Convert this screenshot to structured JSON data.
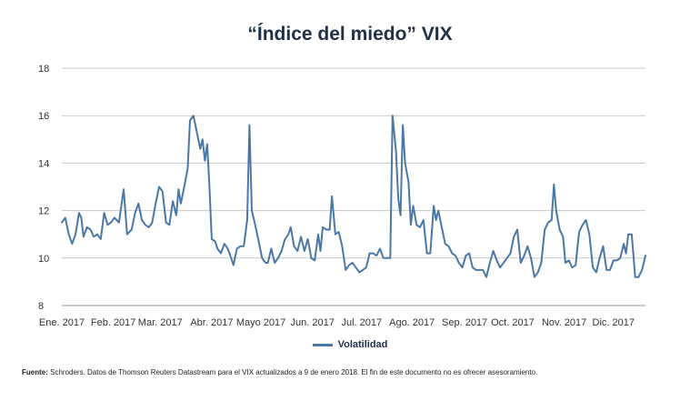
{
  "chart_data": {
    "type": "line",
    "title": "“Índice del miedo” VIX",
    "xlabel": "",
    "ylabel": "",
    "ylim": [
      8,
      18
    ],
    "yticks": [
      8,
      10,
      12,
      14,
      16,
      18
    ],
    "xlim": [
      0,
      51
    ],
    "x_tick_labels": [
      {
        "pos": 0,
        "label": "Ene. 2017"
      },
      {
        "pos": 4.5,
        "label": "Feb. 2017"
      },
      {
        "pos": 8.6,
        "label": "Mar. 2017"
      },
      {
        "pos": 13.1,
        "label": "Abr. 2017"
      },
      {
        "pos": 17.4,
        "label": "Mayo 2017"
      },
      {
        "pos": 21.9,
        "label": "Jun. 2017"
      },
      {
        "pos": 26.2,
        "label": "Jul. 2017"
      },
      {
        "pos": 30.6,
        "label": "Ago. 2017"
      },
      {
        "pos": 35.2,
        "label": "Sep. 2017"
      },
      {
        "pos": 39.4,
        "label": "Oct. 2017"
      },
      {
        "pos": 43.9,
        "label": "Nov. 2017"
      },
      {
        "pos": 48.2,
        "label": "Dic. 2017"
      }
    ],
    "series": [
      {
        "name": "Volatilidad",
        "color": "#4a78a6",
        "points": [
          [
            0,
            11.5
          ],
          [
            0.3,
            11.7
          ],
          [
            0.6,
            11.0
          ],
          [
            0.9,
            10.6
          ],
          [
            1.2,
            11.0
          ],
          [
            1.5,
            11.9
          ],
          [
            1.7,
            11.7
          ],
          [
            1.9,
            10.9
          ],
          [
            2.2,
            11.3
          ],
          [
            2.5,
            11.2
          ],
          [
            2.8,
            10.9
          ],
          [
            3.1,
            11.0
          ],
          [
            3.4,
            10.8
          ],
          [
            3.7,
            11.9
          ],
          [
            4.0,
            11.4
          ],
          [
            4.3,
            11.5
          ],
          [
            4.6,
            11.7
          ],
          [
            5.0,
            11.5
          ],
          [
            5.4,
            12.9
          ],
          [
            5.7,
            11.0
          ],
          [
            6.1,
            11.2
          ],
          [
            6.4,
            11.9
          ],
          [
            6.7,
            12.3
          ],
          [
            7.0,
            11.6
          ],
          [
            7.3,
            11.4
          ],
          [
            7.6,
            11.3
          ],
          [
            7.9,
            11.5
          ],
          [
            8.2,
            12.3
          ],
          [
            8.5,
            13.0
          ],
          [
            8.8,
            12.8
          ],
          [
            9.1,
            11.5
          ],
          [
            9.4,
            11.4
          ],
          [
            9.7,
            12.4
          ],
          [
            10.0,
            11.8
          ],
          [
            10.2,
            12.9
          ],
          [
            10.4,
            12.3
          ],
          [
            10.7,
            13.0
          ],
          [
            11.0,
            13.8
          ],
          [
            11.2,
            15.8
          ],
          [
            11.5,
            16.0
          ],
          [
            11.8,
            15.3
          ],
          [
            12.1,
            14.6
          ],
          [
            12.3,
            15.0
          ],
          [
            12.5,
            14.1
          ],
          [
            12.7,
            14.8
          ],
          [
            12.9,
            13.0
          ],
          [
            13.1,
            10.8
          ],
          [
            13.4,
            10.7
          ],
          [
            13.6,
            10.4
          ],
          [
            13.9,
            10.2
          ],
          [
            14.2,
            10.6
          ],
          [
            14.5,
            10.4
          ],
          [
            14.8,
            10.0
          ],
          [
            15.0,
            9.7
          ],
          [
            15.3,
            10.4
          ],
          [
            15.6,
            10.5
          ],
          [
            15.9,
            10.5
          ],
          [
            16.2,
            11.6
          ],
          [
            16.4,
            15.6
          ],
          [
            16.6,
            12.0
          ],
          [
            16.9,
            11.4
          ],
          [
            17.2,
            10.7
          ],
          [
            17.5,
            10.0
          ],
          [
            17.8,
            9.8
          ],
          [
            18.0,
            9.8
          ],
          [
            18.3,
            10.4
          ],
          [
            18.6,
            9.8
          ],
          [
            18.9,
            10.0
          ],
          [
            19.2,
            10.3
          ],
          [
            19.5,
            10.8
          ],
          [
            19.8,
            11.0
          ],
          [
            20.0,
            11.3
          ],
          [
            20.3,
            10.5
          ],
          [
            20.6,
            10.3
          ],
          [
            20.9,
            10.9
          ],
          [
            21.2,
            10.3
          ],
          [
            21.5,
            10.8
          ],
          [
            21.8,
            10.0
          ],
          [
            22.1,
            9.9
          ],
          [
            22.4,
            11.0
          ],
          [
            22.6,
            10.3
          ],
          [
            22.8,
            11.3
          ],
          [
            23.1,
            11.2
          ],
          [
            23.4,
            11.2
          ],
          [
            23.6,
            12.6
          ],
          [
            23.9,
            11.0
          ],
          [
            24.2,
            11.1
          ],
          [
            24.5,
            10.5
          ],
          [
            24.8,
            9.5
          ],
          [
            25.1,
            9.7
          ],
          [
            25.4,
            9.8
          ],
          [
            25.7,
            9.6
          ],
          [
            26.0,
            9.4
          ],
          [
            26.3,
            9.5
          ],
          [
            26.6,
            9.6
          ],
          [
            26.9,
            10.2
          ],
          [
            27.2,
            10.2
          ],
          [
            27.5,
            10.1
          ],
          [
            27.8,
            10.4
          ],
          [
            28.1,
            10.0
          ],
          [
            28.4,
            10.0
          ],
          [
            28.7,
            10.0
          ],
          [
            28.9,
            16.0
          ],
          [
            29.2,
            14.5
          ],
          [
            29.4,
            12.5
          ],
          [
            29.6,
            11.8
          ],
          [
            29.8,
            15.6
          ],
          [
            30.0,
            14.0
          ],
          [
            30.3,
            13.2
          ],
          [
            30.5,
            11.4
          ],
          [
            30.7,
            12.2
          ],
          [
            31.0,
            11.4
          ],
          [
            31.3,
            11.3
          ],
          [
            31.6,
            11.6
          ],
          [
            31.9,
            10.2
          ],
          [
            32.2,
            10.2
          ],
          [
            32.5,
            12.2
          ],
          [
            32.7,
            11.6
          ],
          [
            32.9,
            12.0
          ],
          [
            33.2,
            11.3
          ],
          [
            33.5,
            10.6
          ],
          [
            33.8,
            10.5
          ],
          [
            34.1,
            10.2
          ],
          [
            34.4,
            10.1
          ],
          [
            34.7,
            9.8
          ],
          [
            35.0,
            9.6
          ],
          [
            35.3,
            10.1
          ],
          [
            35.6,
            10.2
          ],
          [
            35.9,
            9.6
          ],
          [
            36.2,
            9.5
          ],
          [
            36.5,
            9.5
          ],
          [
            36.8,
            9.5
          ],
          [
            37.1,
            9.2
          ],
          [
            37.4,
            9.8
          ],
          [
            37.7,
            10.3
          ],
          [
            38.0,
            9.9
          ],
          [
            38.3,
            9.6
          ],
          [
            38.6,
            9.8
          ],
          [
            38.9,
            10.0
          ],
          [
            39.2,
            10.2
          ],
          [
            39.5,
            10.9
          ],
          [
            39.8,
            11.2
          ],
          [
            40.1,
            9.8
          ],
          [
            40.4,
            10.1
          ],
          [
            40.7,
            10.5
          ],
          [
            41.0,
            10.0
          ],
          [
            41.3,
            9.2
          ],
          [
            41.6,
            9.4
          ],
          [
            41.9,
            9.8
          ],
          [
            42.2,
            11.2
          ],
          [
            42.5,
            11.5
          ],
          [
            42.8,
            11.6
          ],
          [
            43.0,
            13.1
          ],
          [
            43.2,
            12.0
          ],
          [
            43.5,
            11.2
          ],
          [
            43.8,
            10.9
          ],
          [
            44.0,
            9.8
          ],
          [
            44.3,
            9.9
          ],
          [
            44.6,
            9.6
          ],
          [
            44.9,
            9.7
          ],
          [
            45.2,
            11.1
          ],
          [
            45.5,
            11.4
          ],
          [
            45.8,
            11.6
          ],
          [
            46.1,
            11.0
          ],
          [
            46.4,
            9.6
          ],
          [
            46.7,
            9.4
          ],
          [
            47.0,
            10.0
          ],
          [
            47.3,
            10.5
          ],
          [
            47.6,
            9.5
          ],
          [
            47.9,
            9.5
          ],
          [
            48.2,
            9.9
          ],
          [
            48.5,
            9.9
          ],
          [
            48.8,
            10.0
          ],
          [
            49.1,
            10.6
          ],
          [
            49.3,
            10.2
          ],
          [
            49.5,
            11.0
          ],
          [
            49.8,
            11.0
          ],
          [
            50.1,
            9.2
          ],
          [
            50.4,
            9.2
          ],
          [
            50.7,
            9.5
          ],
          [
            51.0,
            10.1
          ]
        ]
      }
    ],
    "legend": "bottom-center",
    "grid": true
  },
  "legend_label": "Volatilidad",
  "footnote": {
    "label": "Fuente:",
    "text": " Schroders. Datos de Thomson Reuters Datastream para el VIX actualizados a 9 de enero 2018. El fin de este documento no es ofrecer asesoramiento."
  }
}
